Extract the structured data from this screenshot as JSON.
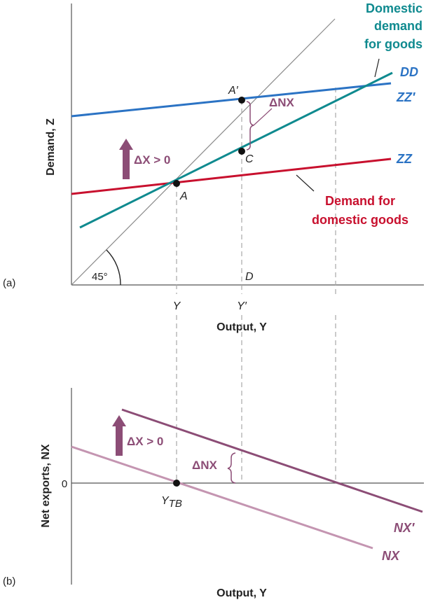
{
  "colors": {
    "axis": "#555555",
    "diag": "#8a8a8a",
    "teal": "#0f8a8f",
    "blue": "#2b73c4",
    "red": "#c8102e",
    "plum": "#8c4d76",
    "pink": "#c495b1",
    "dash": "#a8a8a8",
    "text": "#222222"
  },
  "panel_a": {
    "tag": "(a)",
    "y_axis_label": "Demand, Z",
    "x_axis_label": "Output, Y",
    "angle_label": "45°",
    "point_A": "A",
    "point_A_prime": "A′",
    "point_C": "C",
    "point_D": "D",
    "tick_Y": "Y",
    "tick_Y_prime": "Y′",
    "delta_x": "ΔX > 0",
    "delta_nx": "ΔNX",
    "curve_DD": "DD",
    "curve_ZZ_prime": "ZZ′",
    "curve_ZZ": "ZZ",
    "teal_label": [
      "Domestic",
      "demand",
      "for goods"
    ],
    "red_label": [
      "Demand for",
      "domestic goods"
    ]
  },
  "panel_b": {
    "tag": "(b)",
    "y_axis_label": "Net exports, NX",
    "x_axis_label": "Output, Y",
    "zero": "0",
    "tick_YTB": "Y",
    "tick_YTB_sub": "TB",
    "delta_x": "ΔX > 0",
    "delta_nx": "ΔNX",
    "curve_NX_prime": "NX′",
    "curve_NX": "NX"
  }
}
